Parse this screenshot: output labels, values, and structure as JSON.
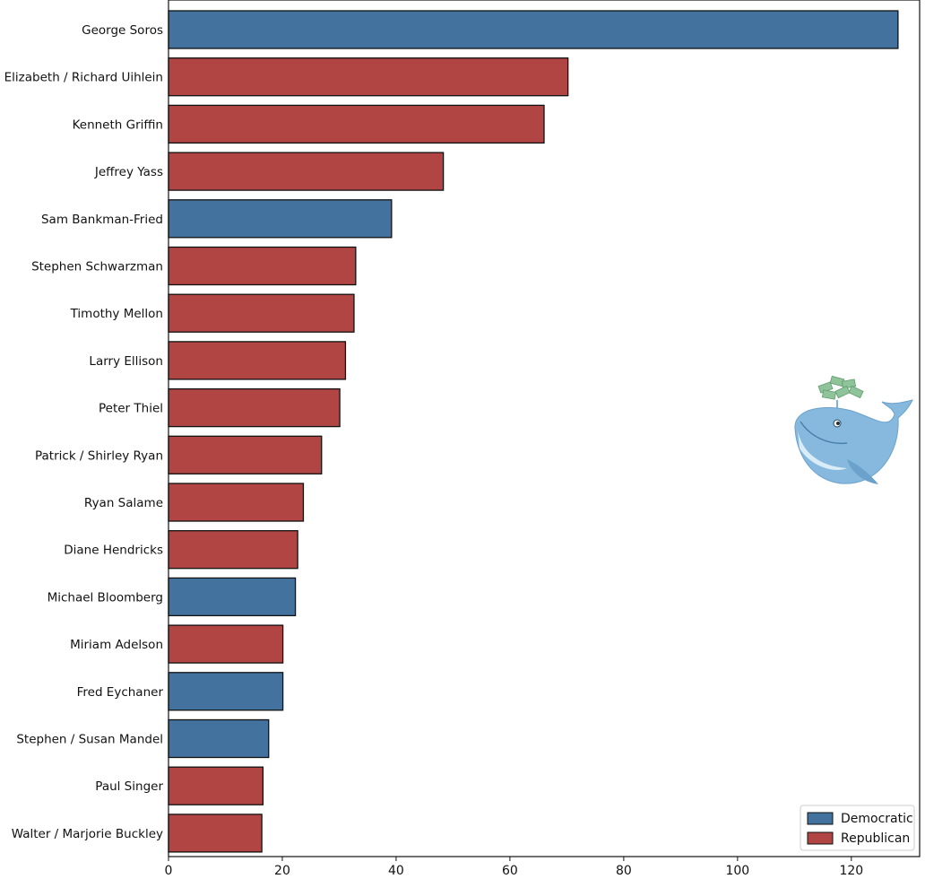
{
  "chart_data": {
    "type": "bar",
    "orientation": "horizontal",
    "categories": [
      "George Soros",
      "Elizabeth / Richard Uihlein",
      "Kenneth Griffin",
      "Jeffrey Yass",
      "Sam Bankman-Fried",
      "Stephen Schwarzman",
      "Timothy Mellon",
      "Larry Ellison",
      "Peter Thiel",
      "Patrick / Shirley Ryan",
      "Ryan Salame",
      "Diane Hendricks",
      "Michael Bloomberg",
      "Miriam Adelson",
      "Fred Eychaner",
      "Stephen / Susan Mandel",
      "Paul Singer",
      "Walter / Marjorie Buckley"
    ],
    "values": [
      128.2,
      70.2,
      66.0,
      48.3,
      39.2,
      32.9,
      32.6,
      31.1,
      30.1,
      26.9,
      23.7,
      22.7,
      22.3,
      20.1,
      20.1,
      17.6,
      16.6,
      16.4
    ],
    "party": [
      "Democratic",
      "Republican",
      "Republican",
      "Republican",
      "Democratic",
      "Republican",
      "Republican",
      "Republican",
      "Republican",
      "Republican",
      "Republican",
      "Republican",
      "Democratic",
      "Republican",
      "Democratic",
      "Democratic",
      "Republican",
      "Republican"
    ],
    "xlim": [
      0,
      132
    ],
    "xticks": [
      "0",
      "20",
      "40",
      "60",
      "80",
      "100",
      "120"
    ],
    "xtick_values": [
      0,
      20,
      40,
      60,
      80,
      100,
      120
    ],
    "legend": {
      "placement": "bottom-right",
      "entries": [
        {
          "label": "Democratic",
          "color": "#43729f"
        },
        {
          "label": "Republican",
          "color": "#b04544"
        }
      ]
    },
    "colors": {
      "Democratic": "#43729f",
      "Republican": "#b04544",
      "edge": "#111111"
    },
    "decoration": "whale-with-money-icon"
  }
}
